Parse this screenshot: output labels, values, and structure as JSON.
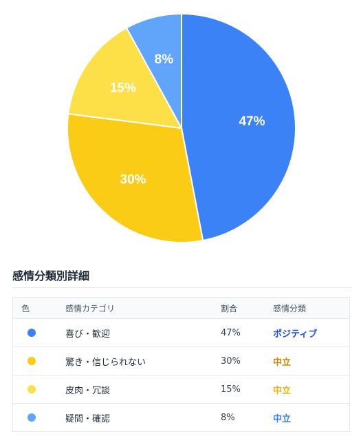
{
  "chart_data": {
    "type": "pie",
    "categories": [
      "喜び・歓迎",
      "驚き・信じられない",
      "皮肉・冗談",
      "疑問・確認"
    ],
    "values": [
      47,
      30,
      15,
      8
    ],
    "labels": [
      "47%",
      "30%",
      "15%",
      "8%"
    ],
    "colors": [
      "#3b82f6",
      "#facc15",
      "#fde047",
      "#60a5fa"
    ],
    "start_angle_deg": 0,
    "direction": "clockwise"
  },
  "section": {
    "title": "感情分類別詳細"
  },
  "table": {
    "headers": {
      "color": "色",
      "category": "感情カテゴリ",
      "ratio": "割合",
      "classification": "感情分類"
    },
    "rows": [
      {
        "color": "#3b82f6",
        "category": "喜び・歓迎",
        "ratio": "47%",
        "classification": "ポジティブ",
        "class_color": "#1d4ed8"
      },
      {
        "color": "#facc15",
        "category": "驚き・信じられない",
        "ratio": "30%",
        "classification": "中立",
        "class_color": "#ca8a04"
      },
      {
        "color": "#fde047",
        "category": "皮肉・冗談",
        "ratio": "15%",
        "classification": "中立",
        "class_color": "#eab308"
      },
      {
        "color": "#60a5fa",
        "category": "疑問・確認",
        "ratio": "8%",
        "classification": "中立",
        "class_color": "#3b82f6"
      }
    ]
  }
}
